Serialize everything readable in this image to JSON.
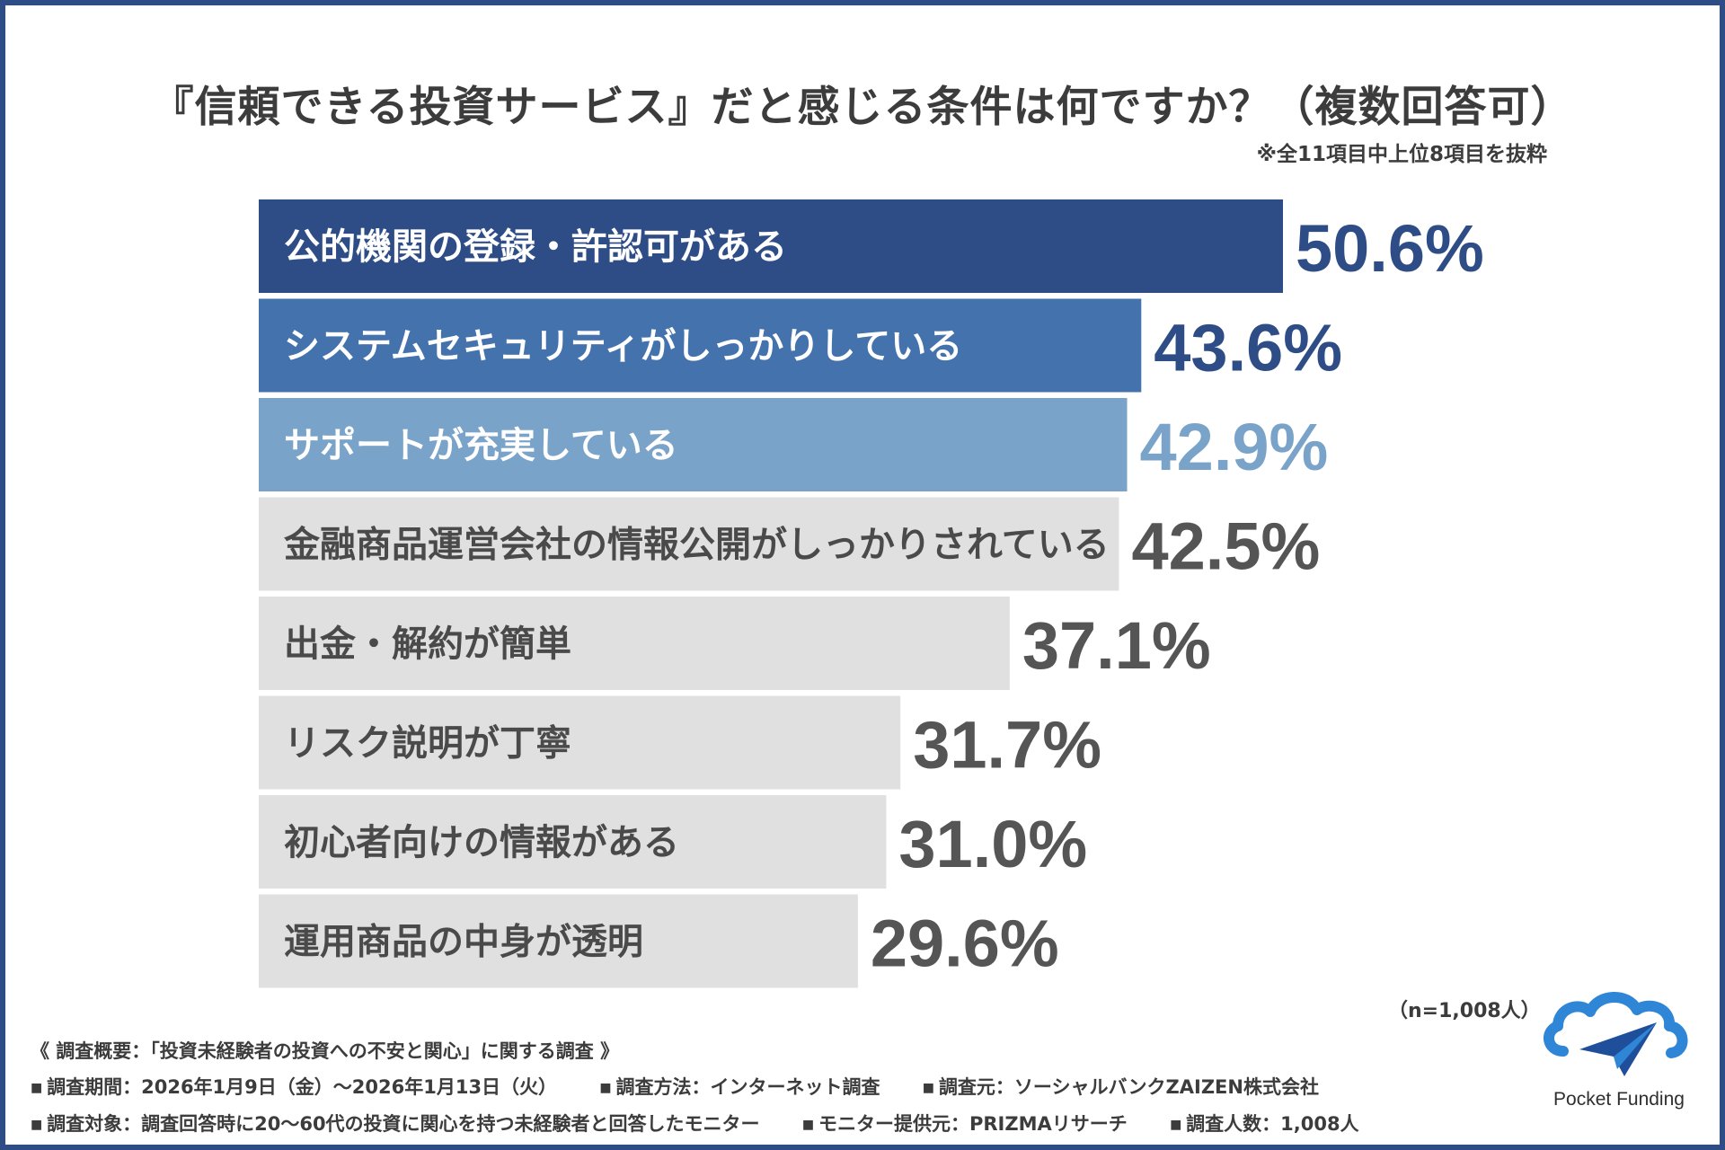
{
  "title": "『信頼できる投資サービス』だと感じる条件は何ですか？（複数回答可）",
  "subtitle": "※全11項目中上位8項目を抜粋",
  "sample_note": "（n=1,008人）",
  "colors": {
    "frame": "#2e4d86",
    "bar_dark": "#2e4d86",
    "bar_mid": "#4472ac",
    "bar_light": "#7aa3c9",
    "bar_gray": "#e0e0e0",
    "label_dark_text": "#ffffff",
    "label_gray_text": "#4a4a4a",
    "value_gray": "#555555"
  },
  "chart_data": {
    "type": "bar",
    "orientation": "horizontal",
    "categories": [
      "公的機関の登録・許認可がある",
      "システムセキュリティがしっかりしている",
      "サポートが充実している",
      "金融商品運営会社の情報公開がしっかりされている",
      "出金・解約が簡単",
      "リスク説明が丁寧",
      "初心者向けの情報がある",
      "運用商品の中身が透明"
    ],
    "values": [
      50.6,
      43.6,
      42.9,
      42.5,
      37.1,
      31.7,
      31.0,
      29.6
    ],
    "value_labels": [
      "50.6%",
      "43.6%",
      "42.9%",
      "42.5%",
      "37.1%",
      "31.7%",
      "31.0%",
      "29.6%"
    ],
    "bar_colors": [
      "#2e4d86",
      "#4472ac",
      "#7aa3c9",
      "#e0e0e0",
      "#e0e0e0",
      "#e0e0e0",
      "#e0e0e0",
      "#e0e0e0"
    ],
    "value_colors": [
      "#2e4d86",
      "#2e4d86",
      "#7aa3c9",
      "#555555",
      "#555555",
      "#555555",
      "#555555",
      "#555555"
    ],
    "label_colors": [
      "#ffffff",
      "#ffffff",
      "#ffffff",
      "#4a4a4a",
      "#4a4a4a",
      "#4a4a4a",
      "#4a4a4a",
      "#4a4a4a"
    ],
    "unit": "%",
    "xlim": [
      0,
      50.6
    ],
    "grid": false,
    "legend": "none"
  },
  "footer": {
    "heading": "《 調査概要：「投資未経験者の投資への不安と関心」に関する調査 》",
    "row1": [
      "調査期間：2026年1月9日（金）〜2026年1月13日（火）",
      "調査方法：インターネット調査",
      "調査元：ソーシャルバンクZAIZEN株式会社"
    ],
    "row2": [
      "調査対象：調査回答時に20〜60代の投資に関心を持つ未経験者と回答したモニター",
      "モニター提供元：PRIZMAリサーチ",
      "調査人数：1,008人"
    ]
  },
  "logo": {
    "text": "Pocket Funding",
    "icon": "cloud-paper-plane-icon",
    "cloud_color": "#2f86d6",
    "plane_color": "#1f4f9a"
  }
}
